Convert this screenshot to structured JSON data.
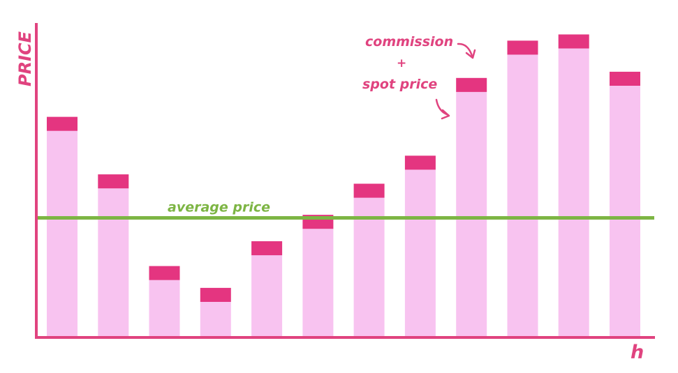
{
  "chart_data": {
    "type": "bar",
    "stacked": true,
    "title": "",
    "xlabel": "h",
    "ylabel": "PRICE",
    "ylim": [
      0,
      100
    ],
    "categories": [
      "",
      "",
      "",
      "",
      "",
      "",
      "",
      "",
      "",
      "",
      "",
      ""
    ],
    "series": [
      {
        "values": [
          66,
          47.5,
          18,
          11,
          26,
          34.5,
          44.5,
          53.5,
          78.5,
          90.5,
          92.5,
          80.5
        ]
      },
      {
        "values": [
          4.5,
          4.5,
          4.5,
          4.5,
          4.5,
          4.5,
          4.5,
          4.5,
          4.5,
          4.5,
          4.5,
          4.5
        ]
      }
    ],
    "reference_line": {
      "label": "average price",
      "value": 38
    },
    "annotation": {
      "line1": "commission",
      "line2": "+",
      "line3": "spot price"
    },
    "colors": {
      "axis": "#e0437f",
      "spot": "#f8c3f0",
      "commission": "#e43580",
      "average": "#7db544",
      "text": "#e0437f"
    },
    "grid": false,
    "legend": "none"
  }
}
